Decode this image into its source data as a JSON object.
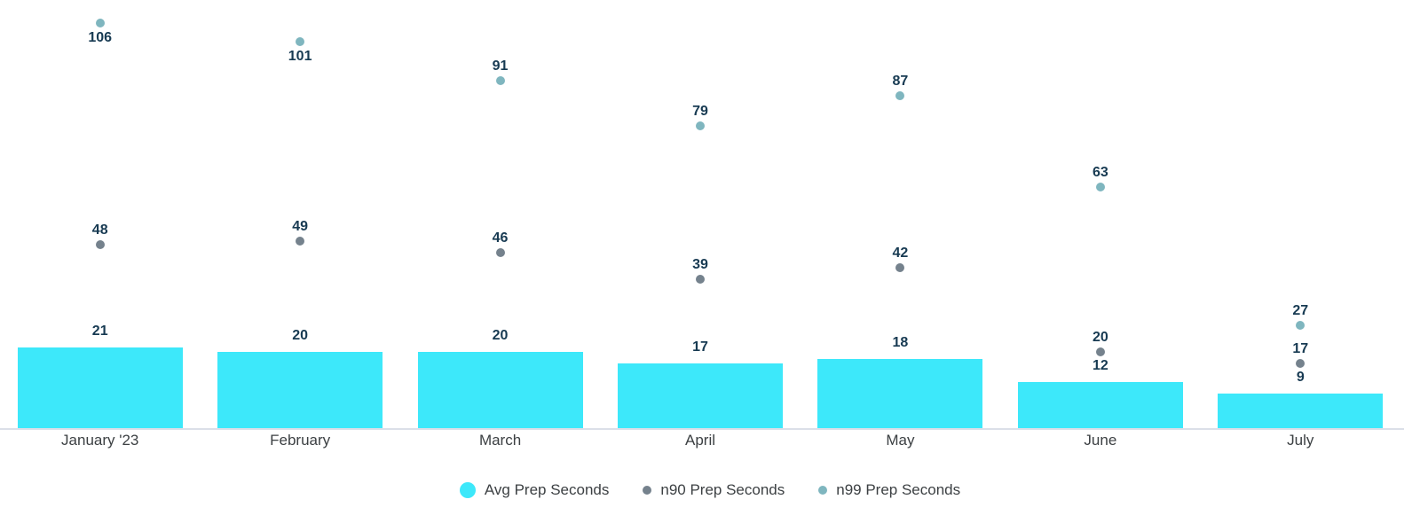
{
  "chart_data": {
    "type": "bar",
    "title": "",
    "categories": [
      "January '23",
      "February",
      "March",
      "April",
      "May",
      "June",
      "July"
    ],
    "series": [
      {
        "name": "Avg Prep Seconds",
        "kind": "bar",
        "color": "#3DE8FA",
        "values": [
          21,
          20,
          20,
          17,
          18,
          12,
          9
        ]
      },
      {
        "name": "n90 Prep Seconds",
        "kind": "point",
        "color": "#75828D",
        "values": [
          48,
          49,
          46,
          39,
          42,
          20,
          17
        ]
      },
      {
        "name": "n99 Prep Seconds",
        "kind": "point",
        "color": "#7FB6BF",
        "values": [
          106,
          101,
          91,
          79,
          87,
          63,
          27
        ]
      }
    ],
    "ylim": [
      0,
      112
    ],
    "grid": false,
    "value_labels": true,
    "legend_position": "bottom",
    "value_label_color": "#173A52",
    "axis_line_color": "#DBDFE8",
    "axis_text_color": "#3C4043",
    "background": "#FFFFFF"
  }
}
